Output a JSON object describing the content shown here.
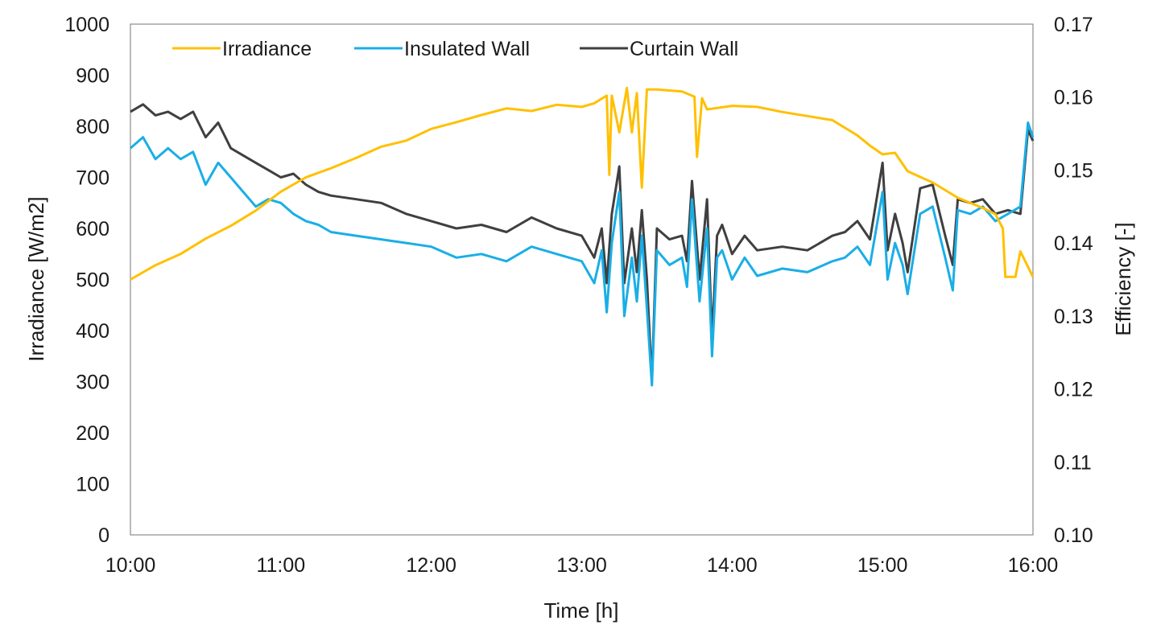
{
  "chart_data": {
    "type": "line",
    "title": "",
    "xlabel": "Time [h]",
    "ylabel_left": "Irradiance [W/m2]",
    "ylabel_right": "Efficiency [-]",
    "x_ticks": [
      "10:00",
      "11:00",
      "12:00",
      "13:00",
      "14:00",
      "15:00",
      "16:00"
    ],
    "x_range_hours": [
      10,
      16
    ],
    "y_left_range": [
      0,
      1000
    ],
    "y_left_ticks": [
      "0",
      "100",
      "200",
      "300",
      "400",
      "500",
      "600",
      "700",
      "800",
      "900",
      "1000"
    ],
    "y_right_range": [
      0.1,
      0.17
    ],
    "y_right_ticks": [
      "0.10",
      "0.11",
      "0.12",
      "0.13",
      "0.14",
      "0.15",
      "0.16",
      "0.17"
    ],
    "grid": false,
    "legend_position": "top",
    "series": [
      {
        "name": "Irradiance",
        "axis": "left",
        "color": "#FFC000",
        "points": [
          [
            "10:00",
            500
          ],
          [
            "10:10",
            528
          ],
          [
            "10:20",
            550
          ],
          [
            "10:30",
            580
          ],
          [
            "10:40",
            605
          ],
          [
            "10:50",
            635
          ],
          [
            "11:00",
            672
          ],
          [
            "11:10",
            700
          ],
          [
            "11:20",
            718
          ],
          [
            "11:30",
            738
          ],
          [
            "11:40",
            760
          ],
          [
            "11:50",
            772
          ],
          [
            "12:00",
            795
          ],
          [
            "12:10",
            808
          ],
          [
            "12:20",
            822
          ],
          [
            "12:30",
            835
          ],
          [
            "12:40",
            830
          ],
          [
            "12:50",
            842
          ],
          [
            "13:00",
            838
          ],
          [
            "13:05",
            845
          ],
          [
            "13:10",
            860
          ],
          [
            "13:11",
            705
          ],
          [
            "13:12",
            860
          ],
          [
            "13:15",
            788
          ],
          [
            "13:18",
            875
          ],
          [
            "13:20",
            788
          ],
          [
            "13:22",
            865
          ],
          [
            "13:24",
            680
          ],
          [
            "13:26",
            872
          ],
          [
            "13:30",
            872
          ],
          [
            "13:40",
            868
          ],
          [
            "13:45",
            858
          ],
          [
            "13:46",
            740
          ],
          [
            "13:48",
            855
          ],
          [
            "13:50",
            833
          ],
          [
            "14:00",
            840
          ],
          [
            "14:10",
            838
          ],
          [
            "14:20",
            828
          ],
          [
            "14:30",
            820
          ],
          [
            "14:40",
            812
          ],
          [
            "14:50",
            782
          ],
          [
            "14:55",
            762
          ],
          [
            "15:00",
            745
          ],
          [
            "15:05",
            748
          ],
          [
            "15:10",
            712
          ],
          [
            "15:20",
            690
          ],
          [
            "15:30",
            660
          ],
          [
            "15:40",
            640
          ],
          [
            "15:45",
            628
          ],
          [
            "15:48",
            600
          ],
          [
            "15:49",
            505
          ],
          [
            "15:53",
            505
          ],
          [
            "15:55",
            555
          ],
          [
            "16:00",
            505
          ]
        ]
      },
      {
        "name": "Insulated Wall",
        "axis": "right",
        "color": "#1AAEE6",
        "points": [
          [
            "10:00",
            0.153
          ],
          [
            "10:05",
            0.1545
          ],
          [
            "10:10",
            0.1515
          ],
          [
            "10:15",
            0.153
          ],
          [
            "10:20",
            0.1515
          ],
          [
            "10:25",
            0.1525
          ],
          [
            "10:30",
            0.148
          ],
          [
            "10:35",
            0.151
          ],
          [
            "10:40",
            0.149
          ],
          [
            "10:45",
            0.147
          ],
          [
            "10:50",
            0.145
          ],
          [
            "10:55",
            0.146
          ],
          [
            "11:00",
            0.1455
          ],
          [
            "11:05",
            0.144
          ],
          [
            "11:10",
            0.143
          ],
          [
            "11:15",
            0.1425
          ],
          [
            "11:20",
            0.1415
          ],
          [
            "11:30",
            0.141
          ],
          [
            "11:40",
            0.1405
          ],
          [
            "11:50",
            0.14
          ],
          [
            "12:00",
            0.1395
          ],
          [
            "12:10",
            0.138
          ],
          [
            "12:20",
            0.1385
          ],
          [
            "12:30",
            0.1375
          ],
          [
            "12:40",
            0.1395
          ],
          [
            "12:50",
            0.1385
          ],
          [
            "13:00",
            0.1375
          ],
          [
            "13:05",
            0.1345
          ],
          [
            "13:08",
            0.139
          ],
          [
            "13:10",
            0.1305
          ],
          [
            "13:12",
            0.14
          ],
          [
            "13:15",
            0.147
          ],
          [
            "13:17",
            0.13
          ],
          [
            "13:20",
            0.138
          ],
          [
            "13:22",
            0.132
          ],
          [
            "13:24",
            0.141
          ],
          [
            "13:26",
            0.131
          ],
          [
            "13:28",
            0.1205
          ],
          [
            "13:30",
            0.139
          ],
          [
            "13:35",
            0.137
          ],
          [
            "13:40",
            0.138
          ],
          [
            "13:42",
            0.134
          ],
          [
            "13:44",
            0.146
          ],
          [
            "13:47",
            0.132
          ],
          [
            "13:50",
            0.142
          ],
          [
            "13:52",
            0.1245
          ],
          [
            "13:54",
            0.138
          ],
          [
            "13:56",
            0.139
          ],
          [
            "14:00",
            0.135
          ],
          [
            "14:05",
            0.138
          ],
          [
            "14:10",
            0.1355
          ],
          [
            "14:20",
            0.1365
          ],
          [
            "14:30",
            0.136
          ],
          [
            "14:40",
            0.1375
          ],
          [
            "14:45",
            0.138
          ],
          [
            "14:50",
            0.1395
          ],
          [
            "14:55",
            0.137
          ],
          [
            "15:00",
            0.147
          ],
          [
            "15:02",
            0.135
          ],
          [
            "15:05",
            0.14
          ],
          [
            "15:08",
            0.137
          ],
          [
            "15:10",
            0.133
          ],
          [
            "15:15",
            0.144
          ],
          [
            "15:20",
            0.145
          ],
          [
            "15:25",
            0.138
          ],
          [
            "15:28",
            0.1335
          ],
          [
            "15:30",
            0.1445
          ],
          [
            "15:35",
            0.144
          ],
          [
            "15:40",
            0.145
          ],
          [
            "15:45",
            0.143
          ],
          [
            "15:50",
            0.144
          ],
          [
            "15:55",
            0.145
          ],
          [
            "15:58",
            0.1565
          ],
          [
            "16:00",
            0.1545
          ]
        ]
      },
      {
        "name": "Curtain Wall",
        "axis": "right",
        "color": "#3F3F3F",
        "points": [
          [
            "10:00",
            0.158
          ],
          [
            "10:05",
            0.159
          ],
          [
            "10:10",
            0.1575
          ],
          [
            "10:15",
            0.158
          ],
          [
            "10:20",
            0.157
          ],
          [
            "10:25",
            0.158
          ],
          [
            "10:30",
            0.1545
          ],
          [
            "10:35",
            0.1565
          ],
          [
            "10:40",
            0.153
          ],
          [
            "10:45",
            0.152
          ],
          [
            "10:50",
            0.151
          ],
          [
            "10:55",
            0.15
          ],
          [
            "11:00",
            0.149
          ],
          [
            "11:05",
            0.1495
          ],
          [
            "11:10",
            0.148
          ],
          [
            "11:15",
            0.147
          ],
          [
            "11:20",
            0.1465
          ],
          [
            "11:30",
            0.146
          ],
          [
            "11:40",
            0.1455
          ],
          [
            "11:50",
            0.144
          ],
          [
            "12:00",
            0.143
          ],
          [
            "12:10",
            0.142
          ],
          [
            "12:20",
            0.1425
          ],
          [
            "12:30",
            0.1415
          ],
          [
            "12:40",
            0.1435
          ],
          [
            "12:50",
            0.142
          ],
          [
            "13:00",
            0.141
          ],
          [
            "13:05",
            0.138
          ],
          [
            "13:08",
            0.142
          ],
          [
            "13:10",
            0.1345
          ],
          [
            "13:12",
            0.144
          ],
          [
            "13:15",
            0.1505
          ],
          [
            "13:17",
            0.1345
          ],
          [
            "13:20",
            0.142
          ],
          [
            "13:22",
            0.136
          ],
          [
            "13:24",
            0.1445
          ],
          [
            "13:26",
            0.135
          ],
          [
            "13:28",
            0.121
          ],
          [
            "13:30",
            0.142
          ],
          [
            "13:35",
            0.1405
          ],
          [
            "13:40",
            0.141
          ],
          [
            "13:42",
            0.1375
          ],
          [
            "13:44",
            0.1485
          ],
          [
            "13:47",
            0.135
          ],
          [
            "13:50",
            0.146
          ],
          [
            "13:52",
            0.127
          ],
          [
            "13:54",
            0.141
          ],
          [
            "13:56",
            0.1425
          ],
          [
            "14:00",
            0.1385
          ],
          [
            "14:05",
            0.141
          ],
          [
            "14:10",
            0.139
          ],
          [
            "14:20",
            0.1395
          ],
          [
            "14:30",
            0.139
          ],
          [
            "14:40",
            0.141
          ],
          [
            "14:45",
            0.1415
          ],
          [
            "14:50",
            0.143
          ],
          [
            "14:55",
            0.1405
          ],
          [
            "15:00",
            0.151
          ],
          [
            "15:02",
            0.139
          ],
          [
            "15:05",
            0.144
          ],
          [
            "15:08",
            0.14
          ],
          [
            "15:10",
            0.136
          ],
          [
            "15:15",
            0.1475
          ],
          [
            "15:20",
            0.148
          ],
          [
            "15:25",
            0.141
          ],
          [
            "15:28",
            0.137
          ],
          [
            "15:30",
            0.146
          ],
          [
            "15:35",
            0.1455
          ],
          [
            "15:40",
            0.146
          ],
          [
            "15:45",
            0.144
          ],
          [
            "15:50",
            0.1445
          ],
          [
            "15:55",
            0.144
          ],
          [
            "15:58",
            0.1555
          ],
          [
            "16:00",
            0.154
          ]
        ]
      }
    ]
  }
}
